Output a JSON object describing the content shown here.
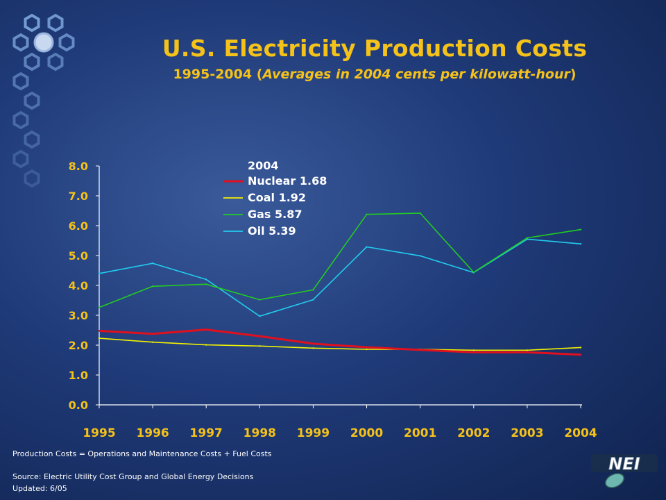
{
  "header": {
    "title": "U.S. Electricity Production Costs",
    "subtitle_years": "1995-2004",
    "subtitle_open": " (",
    "subtitle_italic": "Averages in 2004 cents per kilowatt-hour",
    "subtitle_close": ")"
  },
  "footer": {
    "formula": "Production Costs = Operations and Maintenance Costs + Fuel Costs",
    "source": "Source: Electric Utility Cost Group and Global Energy Decisions",
    "updated": "Updated: 6/05"
  },
  "logo": {
    "text": "NEI",
    "icon": "nei-logo-icon"
  },
  "decoration": {
    "icon": "hexagon-cluster-icon"
  },
  "colors": {
    "title": "#f5c21a",
    "axis": "#ffffff",
    "nuclear": "#e0101e",
    "coal": "#f2f200",
    "gas": "#22cc22",
    "oil": "#22ccee"
  },
  "chart_data": {
    "type": "line",
    "x": [
      "1995",
      "1996",
      "1997",
      "1998",
      "1999",
      "2000",
      "2001",
      "2002",
      "2003",
      "2004"
    ],
    "y_ticks": [
      "0.0",
      "1.0",
      "2.0",
      "3.0",
      "4.0",
      "5.0",
      "6.0",
      "7.0",
      "8.0"
    ],
    "ylim": [
      0,
      8
    ],
    "grid": false,
    "legend": {
      "title": "2004",
      "placement": "top-center",
      "labels": [
        "Nuclear 1.68",
        "Coal 1.92",
        "Gas 5.87",
        "Oil 5.39"
      ]
    },
    "series": [
      {
        "name": "Nuclear",
        "color": "#e0101e",
        "values": [
          2.48,
          2.38,
          2.52,
          2.3,
          2.05,
          1.93,
          1.84,
          1.76,
          1.76,
          1.68
        ]
      },
      {
        "name": "Coal",
        "color": "#f2f200",
        "values": [
          2.23,
          2.1,
          2.01,
          1.97,
          1.9,
          1.86,
          1.86,
          1.83,
          1.83,
          1.92
        ]
      },
      {
        "name": "Gas",
        "color": "#22cc22",
        "values": [
          3.26,
          3.97,
          4.04,
          3.52,
          3.85,
          6.38,
          6.42,
          4.44,
          5.59,
          5.87
        ]
      },
      {
        "name": "Oil",
        "color": "#22ccee",
        "values": [
          4.4,
          4.74,
          4.2,
          2.97,
          3.52,
          5.29,
          4.99,
          4.43,
          5.55,
          5.39
        ]
      }
    ]
  }
}
